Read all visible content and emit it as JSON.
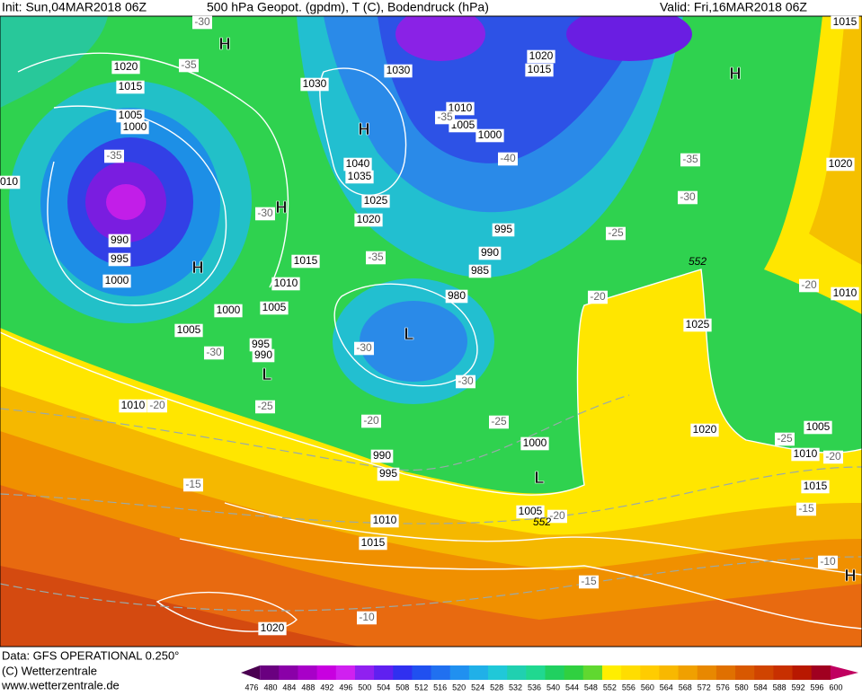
{
  "header": {
    "init": "Init: Sun,04MAR2018 06Z",
    "title": "500 hPa Geopot. (gpdm), T (C), Bodendruck (hPa)",
    "valid": "Valid: Fri,16MAR2018 06Z"
  },
  "footer": {
    "data": "Data: GFS OPERATIONAL 0.250°",
    "copyright": "(C) Wetterzentrale",
    "url": "www.wetterzentrale.de"
  },
  "colorbar": {
    "labels": [
      "476",
      "480",
      "484",
      "488",
      "492",
      "496",
      "500",
      "504",
      "508",
      "512",
      "516",
      "520",
      "524",
      "528",
      "532",
      "536",
      "540",
      "544",
      "548",
      "552",
      "556",
      "560",
      "564",
      "568",
      "572",
      "576",
      "580",
      "584",
      "588",
      "592",
      "596",
      "600"
    ]
  },
  "map": {
    "pressure_labels": [
      "1020",
      "1015",
      "1005",
      "1000",
      "990",
      "995",
      "1000",
      "1030",
      "1030",
      "1040",
      "1035",
      "1025",
      "1020",
      "1015",
      "1010",
      "1005",
      "1000",
      "1005",
      "995",
      "990",
      "1010",
      "1010",
      "1005",
      "1000",
      "1020",
      "1015",
      "995",
      "990",
      "985",
      "980",
      "1000",
      "990",
      "995",
      "1010",
      "1015",
      "1005",
      "1020",
      "1025",
      "1020",
      "1005",
      "1010",
      "1015",
      "1020",
      "1010",
      "1015",
      "010"
    ],
    "temperature_labels": [
      "-30",
      "-35",
      "-35",
      "-30",
      "-35",
      "-40",
      "-35",
      "-30",
      "-35",
      "-25",
      "-20",
      "-20",
      "-30",
      "-30",
      "-30",
      "-25",
      "-20",
      "-20",
      "-25",
      "-15",
      "-25",
      "-20",
      "-15",
      "-10",
      "-15",
      "-10",
      "-20"
    ],
    "pressure_centers": [
      "H",
      "H",
      "H",
      "H",
      "H",
      "H",
      "L",
      "L",
      "L"
    ],
    "contour_labels": [
      "552",
      "552"
    ]
  }
}
